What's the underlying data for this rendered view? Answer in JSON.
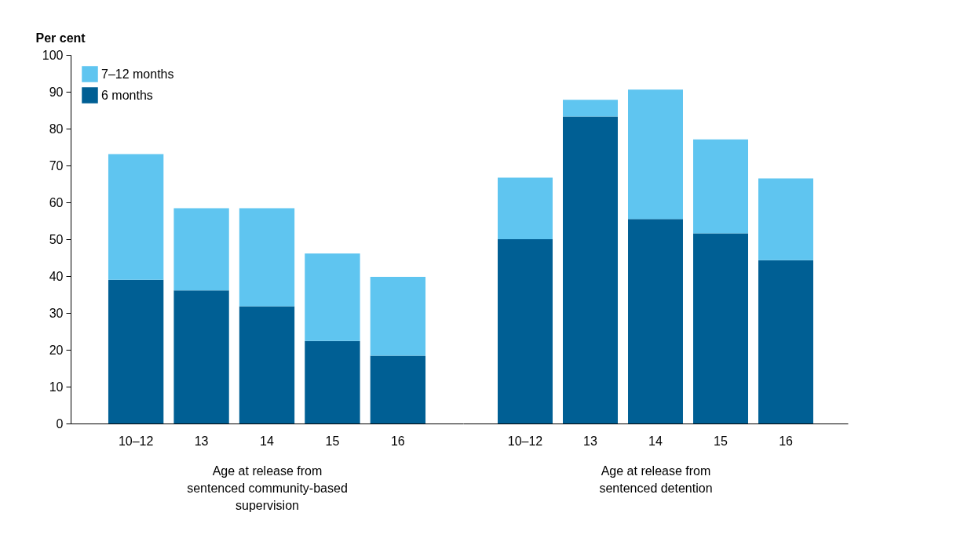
{
  "chart_data": [
    {
      "type": "bar",
      "stacked": true,
      "ylabel": "Per cent",
      "xlabel": "Age at release from sentenced community-based supervision",
      "categories": [
        "10–12",
        "13",
        "14",
        "15",
        "16"
      ],
      "ylim": [
        0,
        100
      ],
      "yticks": [
        0,
        10,
        20,
        30,
        40,
        50,
        60,
        70,
        80,
        90,
        100
      ],
      "grid": false,
      "legend": "top left",
      "series": [
        {
          "name": "6 months",
          "color": "#005f94",
          "values": [
            39.0,
            36.1,
            31.8,
            22.4,
            18.4
          ]
        },
        {
          "name": "7–12 months",
          "color": "#5fc5f0",
          "values": [
            34.1,
            22.3,
            26.6,
            23.7,
            21.4
          ]
        }
      ]
    },
    {
      "type": "bar",
      "stacked": true,
      "xlabel": "Age at release from sentenced detention",
      "categories": [
        "10–12",
        "13",
        "14",
        "15",
        "16"
      ],
      "ylim": [
        0,
        100
      ],
      "tick_labels": "x",
      "grid": false,
      "series": [
        {
          "color": "#005f94",
          "values": [
            50.0,
            83.3,
            55.5,
            51.6,
            44.3
          ]
        },
        {
          "color": "#5fc5f0",
          "values": [
            16.7,
            4.5,
            35.1,
            25.5,
            22.2
          ]
        }
      ]
    }
  ]
}
